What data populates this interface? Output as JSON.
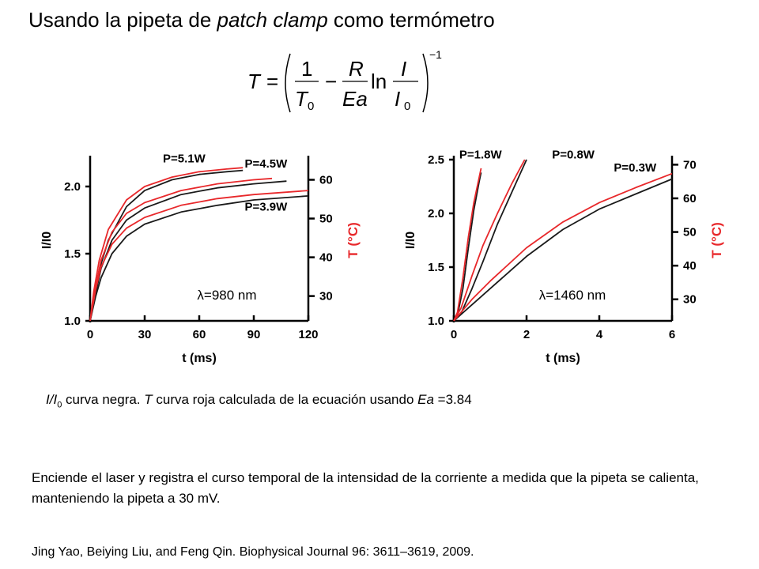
{
  "slide": {
    "title_pre": "Usando la pipeta de ",
    "title_em": "patch clamp",
    "title_post": " como termómetro",
    "equation": {
      "lhs": "T",
      "t0": "T",
      "t0_sub": "0",
      "r": "R",
      "ea": "Ea",
      "ln": "ln",
      "i": "I",
      "i0": "I",
      "i0_sub": "0",
      "exponent": "−1"
    },
    "caption": {
      "i": "I",
      "slash": "/I",
      "sub": "0",
      "mid": " curva negra. ",
      "t": "T",
      "rest": " curva roja calculada de la ecuación usando ",
      "ea": "Ea",
      "value": " =3.84"
    },
    "description": "Enciende el laser y registra el curso temporal de la intensidad de la corriente a medida que la pipeta se calienta, manteniendo la pipeta a 30 mV.",
    "reference": "Jing Yao, Beiying Liu, and Feng Qin. Biophysical Journal 96: 3611–3619, 2009."
  },
  "colors": {
    "measured": "#1a1a1a",
    "calculated": "#e8282b",
    "axis_right": "#e8282b"
  },
  "chart_data": [
    {
      "type": "line",
      "annotation": "λ=980 nm",
      "xlabel": "t (ms)",
      "ylabel": "I/I0",
      "y2label": "T (°C)",
      "xlim": [
        0,
        120
      ],
      "ylim": [
        1.0,
        2.2
      ],
      "y2lim": [
        23.6,
        65.2
      ],
      "xticks": [
        0,
        30,
        60,
        90,
        120
      ],
      "yticks": [
        1.0,
        1.5,
        2.0
      ],
      "y2ticks": [
        30,
        40,
        50,
        60
      ],
      "series": [
        {
          "name": "P=5.1W",
          "color": "black",
          "points": [
            [
              0,
              1.0
            ],
            [
              2,
              1.17
            ],
            [
              5,
              1.38
            ],
            [
              10,
              1.6
            ],
            [
              20,
              1.85
            ],
            [
              30,
              1.97
            ],
            [
              45,
              2.05
            ],
            [
              60,
              2.09
            ],
            [
              75,
              2.11
            ],
            [
              84,
              2.12
            ]
          ]
        },
        {
          "name": "P=5.1W",
          "color": "red",
          "points": [
            [
              0,
              1.0
            ],
            [
              2,
              1.22
            ],
            [
              5,
              1.45
            ],
            [
              10,
              1.68
            ],
            [
              20,
              1.9
            ],
            [
              30,
              2.0
            ],
            [
              45,
              2.07
            ],
            [
              60,
              2.11
            ],
            [
              75,
              2.13
            ],
            [
              84,
              2.14
            ]
          ]
        },
        {
          "name": "P=4.5W",
          "color": "black",
          "points": [
            [
              0,
              1.0
            ],
            [
              3,
              1.2
            ],
            [
              6,
              1.39
            ],
            [
              12,
              1.6
            ],
            [
              20,
              1.75
            ],
            [
              30,
              1.84
            ],
            [
              50,
              1.94
            ],
            [
              70,
              1.99
            ],
            [
              90,
              2.02
            ],
            [
              108,
              2.04
            ]
          ]
        },
        {
          "name": "P=4.5W",
          "color": "red",
          "points": [
            [
              0,
              1.0
            ],
            [
              3,
              1.25
            ],
            [
              6,
              1.45
            ],
            [
              12,
              1.66
            ],
            [
              20,
              1.8
            ],
            [
              30,
              1.88
            ],
            [
              50,
              1.97
            ],
            [
              70,
              2.02
            ],
            [
              90,
              2.05
            ],
            [
              100,
              2.06
            ]
          ]
        },
        {
          "name": "P=3.9W",
          "color": "black",
          "points": [
            [
              0,
              1.0
            ],
            [
              3,
              1.18
            ],
            [
              6,
              1.32
            ],
            [
              12,
              1.5
            ],
            [
              20,
              1.63
            ],
            [
              30,
              1.72
            ],
            [
              50,
              1.81
            ],
            [
              70,
              1.86
            ],
            [
              90,
              1.9
            ],
            [
              110,
              1.92
            ],
            [
              120,
              1.93
            ]
          ]
        },
        {
          "name": "P=3.9W",
          "color": "red",
          "points": [
            [
              0,
              1.0
            ],
            [
              3,
              1.23
            ],
            [
              6,
              1.4
            ],
            [
              12,
              1.57
            ],
            [
              20,
              1.69
            ],
            [
              30,
              1.77
            ],
            [
              50,
              1.86
            ],
            [
              70,
              1.91
            ],
            [
              90,
              1.94
            ],
            [
              110,
              1.96
            ],
            [
              120,
              1.97
            ]
          ]
        }
      ],
      "labels": [
        {
          "text": "P=5.1W",
          "x": 40,
          "y": 2.18
        },
        {
          "text": "P=4.5W",
          "x": 85,
          "y": 2.14
        },
        {
          "text": "P=3.9W",
          "x": 85,
          "y": 1.82
        }
      ]
    },
    {
      "type": "line",
      "annotation": "λ=1460 nm",
      "xlabel": "t (ms)",
      "ylabel": "I/I0",
      "y2label": "T (°C)",
      "xlim": [
        0,
        6
      ],
      "ylim": [
        1.0,
        2.5
      ],
      "y2lim": [
        23.6,
        71.5
      ],
      "xticks": [
        0,
        2,
        4,
        6
      ],
      "yticks": [
        1.0,
        1.5,
        2.0,
        2.5
      ],
      "y2ticks": [
        30,
        40,
        50,
        60,
        70
      ],
      "series": [
        {
          "name": "P=1.8W",
          "color": "black",
          "points": [
            [
              0,
              1.0
            ],
            [
              0.1,
              1.05
            ],
            [
              0.25,
              1.3
            ],
            [
              0.4,
              1.68
            ],
            [
              0.55,
              2.03
            ],
            [
              0.7,
              2.3
            ],
            [
              0.75,
              2.38
            ]
          ]
        },
        {
          "name": "P=1.8W",
          "color": "red",
          "points": [
            [
              0,
              1.0
            ],
            [
              0.1,
              1.08
            ],
            [
              0.25,
              1.4
            ],
            [
              0.4,
              1.78
            ],
            [
              0.55,
              2.1
            ],
            [
              0.7,
              2.34
            ],
            [
              0.75,
              2.42
            ]
          ]
        },
        {
          "name": "P=0.8W",
          "color": "black",
          "points": [
            [
              0,
              1.0
            ],
            [
              0.2,
              1.07
            ],
            [
              0.5,
              1.3
            ],
            [
              0.8,
              1.55
            ],
            [
              1.2,
              1.9
            ],
            [
              1.6,
              2.2
            ],
            [
              2.0,
              2.5
            ]
          ]
        },
        {
          "name": "P=0.8W",
          "color": "red",
          "points": [
            [
              0,
              1.0
            ],
            [
              0.2,
              1.12
            ],
            [
              0.5,
              1.42
            ],
            [
              0.8,
              1.7
            ],
            [
              1.2,
              2.0
            ],
            [
              1.6,
              2.28
            ],
            [
              1.95,
              2.5
            ]
          ]
        },
        {
          "name": "P=0.3W",
          "color": "black",
          "points": [
            [
              0,
              1.0
            ],
            [
              0.5,
              1.15
            ],
            [
              1,
              1.3
            ],
            [
              2,
              1.6
            ],
            [
              3,
              1.85
            ],
            [
              4,
              2.04
            ],
            [
              5,
              2.18
            ],
            [
              6,
              2.32
            ]
          ]
        },
        {
          "name": "P=0.3W",
          "color": "red",
          "points": [
            [
              0,
              1.0
            ],
            [
              0.5,
              1.2
            ],
            [
              1,
              1.37
            ],
            [
              2,
              1.68
            ],
            [
              3,
              1.92
            ],
            [
              4,
              2.1
            ],
            [
              5,
              2.24
            ],
            [
              6,
              2.37
            ]
          ]
        }
      ],
      "labels": [
        {
          "text": "P=1.8W",
          "x": 0.15,
          "y": 2.51
        },
        {
          "text": "P=0.8W",
          "x": 2.7,
          "y": 2.51
        },
        {
          "text": "P=0.3W",
          "x": 4.4,
          "y": 2.39
        }
      ]
    }
  ]
}
